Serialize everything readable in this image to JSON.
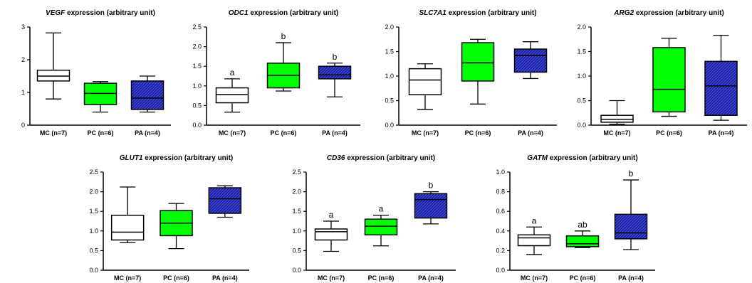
{
  "colors": {
    "MC": "#ffffff",
    "PC": "#00ff00",
    "PA": "#1a1aa8",
    "PA_hatch": "#4b5bd0",
    "stroke": "#000000"
  },
  "chart_data": [
    {
      "type": "boxplot",
      "title_gene": "VEGF",
      "title_rest": " expression (arbitrary unit)",
      "categories": [
        "MC (n=7)",
        "PC (n=6)",
        "PA (n=4)"
      ],
      "ylim": [
        0,
        3
      ],
      "yticks": [
        "0",
        "1",
        "2",
        "3"
      ],
      "boxes": [
        {
          "min": 0.8,
          "q1": 1.35,
          "median": 1.5,
          "q3": 1.68,
          "max": 2.82
        },
        {
          "min": 0.4,
          "q1": 0.63,
          "median": 0.97,
          "q3": 1.28,
          "max": 1.33
        },
        {
          "min": 0.4,
          "q1": 0.48,
          "median": 0.83,
          "q3": 1.35,
          "max": 1.5
        }
      ],
      "significance": []
    },
    {
      "type": "boxplot",
      "title_gene": "ODC1",
      "title_rest": " expression (arbitrary unit)",
      "categories": [
        "MC (n=7)",
        "PC (n=6)",
        "PA (n=4)"
      ],
      "ylim": [
        0,
        2.5
      ],
      "yticks": [
        "0.0",
        "0.5",
        "1.0",
        "1.5",
        "2.0",
        "2.5"
      ],
      "boxes": [
        {
          "min": 0.33,
          "q1": 0.57,
          "median": 0.78,
          "q3": 0.95,
          "max": 1.18
        },
        {
          "min": 0.87,
          "q1": 0.95,
          "median": 1.27,
          "q3": 1.58,
          "max": 2.1
        },
        {
          "min": 0.72,
          "q1": 1.18,
          "median": 1.28,
          "q3": 1.5,
          "max": 1.58
        }
      ],
      "significance": [
        "a",
        "b",
        "b"
      ]
    },
    {
      "type": "boxplot",
      "title_gene": "SLC7A1",
      "title_rest": " expression (arbitrary unit)",
      "categories": [
        "MC (n=7)",
        "PC (n=6)",
        "PA (n=4)"
      ],
      "ylim": [
        0,
        2
      ],
      "yticks": [
        "0.0",
        "0.5",
        "1.0",
        "1.5",
        "2.0"
      ],
      "boxes": [
        {
          "min": 0.32,
          "q1": 0.62,
          "median": 0.92,
          "q3": 1.15,
          "max": 1.25
        },
        {
          "min": 0.43,
          "q1": 0.9,
          "median": 1.27,
          "q3": 1.68,
          "max": 1.75
        },
        {
          "min": 0.95,
          "q1": 1.08,
          "median": 1.42,
          "q3": 1.55,
          "max": 1.7
        }
      ],
      "significance": []
    },
    {
      "type": "boxplot",
      "title_gene": "ARG2",
      "title_rest": " expression (arbitrary unit)",
      "categories": [
        "MC (n=7)",
        "PC (n=6)",
        "PA (n=4)"
      ],
      "ylim": [
        0,
        2
      ],
      "yticks": [
        "0.0",
        "0.5",
        "1.0",
        "1.5",
        "2.0"
      ],
      "boxes": [
        {
          "min": 0.02,
          "q1": 0.06,
          "median": 0.12,
          "q3": 0.2,
          "max": 0.5
        },
        {
          "min": 0.18,
          "q1": 0.27,
          "median": 0.73,
          "q3": 1.58,
          "max": 1.77
        },
        {
          "min": 0.1,
          "q1": 0.2,
          "median": 0.8,
          "q3": 1.3,
          "max": 1.83
        }
      ],
      "significance": []
    },
    {
      "type": "boxplot",
      "title_gene": "GLUT1",
      "title_rest": " expression (arbitrary unit)",
      "categories": [
        "MC (n=7)",
        "PC (n=6)",
        "PA (n=4)"
      ],
      "ylim": [
        0,
        2.5
      ],
      "yticks": [
        "0.0",
        "0.5",
        "1.0",
        "1.5",
        "2.0",
        "2.5"
      ],
      "boxes": [
        {
          "min": 0.7,
          "q1": 0.77,
          "median": 0.97,
          "q3": 1.4,
          "max": 2.12
        },
        {
          "min": 0.55,
          "q1": 0.88,
          "median": 1.2,
          "q3": 1.52,
          "max": 1.7
        },
        {
          "min": 1.35,
          "q1": 1.45,
          "median": 1.82,
          "q3": 2.1,
          "max": 2.15
        }
      ],
      "significance": []
    },
    {
      "type": "boxplot",
      "title_gene": "CD36",
      "title_rest": " expression (arbitrary unit)",
      "categories": [
        "MC (n=7)",
        "PC (n=6)",
        "PA (n=4)"
      ],
      "ylim": [
        0,
        2.5
      ],
      "yticks": [
        "0.0",
        "0.5",
        "1.0",
        "1.5",
        "2.0",
        "2.5"
      ],
      "boxes": [
        {
          "min": 0.48,
          "q1": 0.77,
          "median": 0.98,
          "q3": 1.05,
          "max": 1.25
        },
        {
          "min": 0.62,
          "q1": 0.9,
          "median": 1.12,
          "q3": 1.3,
          "max": 1.4
        },
        {
          "min": 1.18,
          "q1": 1.33,
          "median": 1.8,
          "q3": 1.95,
          "max": 2.0
        }
      ],
      "significance": [
        "a",
        "a",
        "b"
      ]
    },
    {
      "type": "boxplot",
      "title_gene": "GATM",
      "title_rest": " expression (arbitrary unit)",
      "categories": [
        "MC (n=7)",
        "PC (n=6)",
        "PA (n=4)"
      ],
      "ylim": [
        0,
        1
      ],
      "yticks": [
        "0.0",
        "0.2",
        "0.4",
        "0.6",
        "0.8",
        "1.0"
      ],
      "boxes": [
        {
          "min": 0.16,
          "q1": 0.25,
          "median": 0.33,
          "q3": 0.36,
          "max": 0.44
        },
        {
          "min": 0.23,
          "q1": 0.24,
          "median": 0.27,
          "q3": 0.35,
          "max": 0.4
        },
        {
          "min": 0.21,
          "q1": 0.32,
          "median": 0.38,
          "q3": 0.57,
          "max": 0.92
        }
      ],
      "significance": [
        "a",
        "ab",
        "b"
      ]
    }
  ]
}
